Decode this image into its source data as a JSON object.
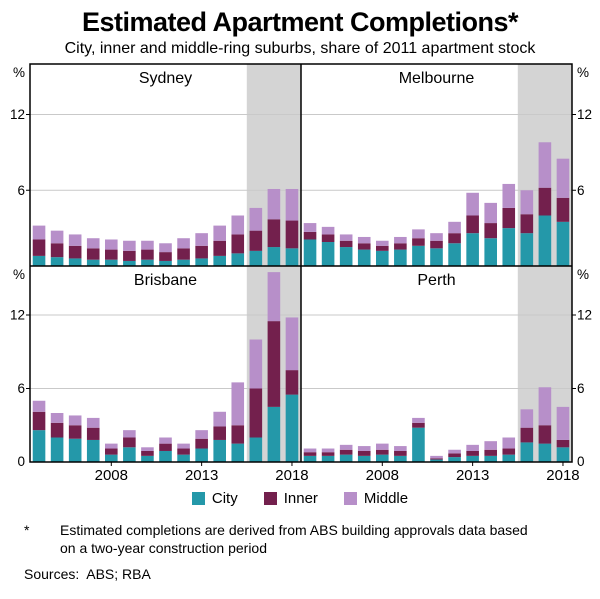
{
  "page": {
    "title": "Estimated Apartment Completions*",
    "subtitle": "City, inner and middle-ring suburbs, share of 2011 apartment stock",
    "footnote_marker": "*",
    "footnote_text": "Estimated completions are derived from ABS building approvals data based on a two-year construction period",
    "sources": "Sources:  ABS; RBA"
  },
  "legend": [
    {
      "label": "City",
      "color": "#2498a9"
    },
    {
      "label": "Inner",
      "color": "#73204d"
    },
    {
      "label": "Middle",
      "color": "#b78fc9"
    }
  ],
  "colors": {
    "gridline": "#c9c9c9",
    "forecast_shading": "#d4d4d4",
    "axis": "#000000"
  },
  "chart_data": {
    "type": "bar",
    "stacked": true,
    "unit": "%",
    "x": [
      2004,
      2005,
      2006,
      2007,
      2008,
      2009,
      2010,
      2011,
      2012,
      2013,
      2014,
      2015,
      2016,
      2017,
      2018
    ],
    "x_ticks": [
      2008,
      2013,
      2018
    ],
    "ylim": [
      0,
      16
    ],
    "y_ticks": [
      0,
      6,
      12
    ],
    "y_axis_unit": "%",
    "grid": true,
    "legend_position": "bottom",
    "shaded_from_year": 2016,
    "panels": [
      {
        "title": "Sydney",
        "series": [
          {
            "name": "City",
            "values": [
              0.8,
              0.7,
              0.6,
              0.5,
              0.5,
              0.4,
              0.5,
              0.4,
              0.5,
              0.6,
              0.8,
              1.0,
              1.2,
              1.5,
              1.4
            ]
          },
          {
            "name": "Inner",
            "values": [
              1.3,
              1.1,
              1.0,
              0.9,
              0.8,
              0.8,
              0.8,
              0.7,
              0.9,
              1.0,
              1.2,
              1.5,
              1.6,
              2.2,
              2.2
            ]
          },
          {
            "name": "Middle",
            "values": [
              1.1,
              1.0,
              0.9,
              0.8,
              0.8,
              0.8,
              0.7,
              0.7,
              0.8,
              1.0,
              1.2,
              1.5,
              1.8,
              2.4,
              2.5
            ]
          }
        ]
      },
      {
        "title": "Melbourne",
        "series": [
          {
            "name": "City",
            "values": [
              2.1,
              1.9,
              1.5,
              1.3,
              1.2,
              1.3,
              1.6,
              1.4,
              1.8,
              2.6,
              2.2,
              3.0,
              2.6,
              4.0,
              3.5
            ]
          },
          {
            "name": "Inner",
            "values": [
              0.6,
              0.6,
              0.5,
              0.5,
              0.4,
              0.5,
              0.6,
              0.6,
              0.8,
              1.4,
              1.2,
              1.6,
              1.5,
              2.2,
              1.9
            ]
          },
          {
            "name": "Middle",
            "values": [
              0.7,
              0.6,
              0.5,
              0.5,
              0.4,
              0.5,
              0.7,
              0.6,
              0.9,
              1.8,
              1.6,
              1.9,
              1.9,
              3.6,
              3.1
            ]
          }
        ]
      },
      {
        "title": "Brisbane",
        "series": [
          {
            "name": "City",
            "values": [
              2.6,
              2.0,
              1.9,
              1.8,
              0.6,
              1.2,
              0.5,
              0.9,
              0.6,
              1.1,
              1.8,
              1.5,
              2.0,
              4.5,
              5.5
            ]
          },
          {
            "name": "Inner",
            "values": [
              1.5,
              1.2,
              1.1,
              1.0,
              0.5,
              0.8,
              0.4,
              0.6,
              0.5,
              0.8,
              1.1,
              1.5,
              4.0,
              7.0,
              2.0
            ]
          },
          {
            "name": "Middle",
            "values": [
              0.9,
              0.8,
              0.8,
              0.8,
              0.4,
              0.6,
              0.3,
              0.5,
              0.4,
              0.7,
              1.2,
              3.5,
              4.0,
              4.0,
              4.3
            ]
          }
        ]
      },
      {
        "title": "Perth",
        "series": [
          {
            "name": "City",
            "values": [
              0.5,
              0.5,
              0.6,
              0.5,
              0.6,
              0.5,
              2.8,
              0.2,
              0.4,
              0.5,
              0.5,
              0.6,
              1.6,
              1.5,
              1.2
            ]
          },
          {
            "name": "Inner",
            "values": [
              0.3,
              0.3,
              0.4,
              0.4,
              0.4,
              0.4,
              0.4,
              0.1,
              0.3,
              0.4,
              0.5,
              0.5,
              1.2,
              1.5,
              0.6
            ]
          },
          {
            "name": "Middle",
            "values": [
              0.3,
              0.3,
              0.4,
              0.4,
              0.5,
              0.4,
              0.4,
              0.2,
              0.3,
              0.5,
              0.7,
              0.9,
              1.5,
              3.1,
              2.7
            ]
          }
        ]
      }
    ]
  }
}
